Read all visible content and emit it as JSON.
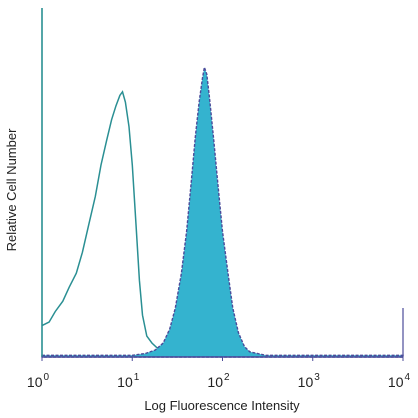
{
  "chart_data": {
    "type": "area",
    "title": "",
    "xlabel": "Log Fluorescence Intensity",
    "ylabel": "Relative Cell Number",
    "x_scale": "log10",
    "xlim": [
      1,
      10000
    ],
    "ylim": [
      0,
      100
    ],
    "x_ticks": [
      {
        "base": "10",
        "exp": "0"
      },
      {
        "base": "10",
        "exp": "1"
      },
      {
        "base": "10",
        "exp": "2"
      },
      {
        "base": "10",
        "exp": "3"
      },
      {
        "base": "10",
        "exp": "4"
      }
    ],
    "grid": false,
    "series": [
      {
        "style": "outline",
        "color": "#2a8f93",
        "points": [
          [
            1.0,
            9
          ],
          [
            1.2,
            10
          ],
          [
            1.4,
            13
          ],
          [
            1.7,
            16
          ],
          [
            2.0,
            20
          ],
          [
            2.4,
            24
          ],
          [
            2.8,
            30
          ],
          [
            3.3,
            38
          ],
          [
            3.9,
            46
          ],
          [
            4.5,
            55
          ],
          [
            5.2,
            62
          ],
          [
            5.9,
            68
          ],
          [
            6.6,
            72
          ],
          [
            7.3,
            75
          ],
          [
            7.8,
            76
          ],
          [
            8.4,
            73
          ],
          [
            9.2,
            66
          ],
          [
            10.0,
            55
          ],
          [
            11.0,
            38
          ],
          [
            12.0,
            22
          ],
          [
            13.0,
            12
          ],
          [
            14.5,
            6
          ],
          [
            16.5,
            4
          ],
          [
            20,
            2
          ],
          [
            30,
            1
          ]
        ]
      },
      {
        "style": "filled",
        "color": "#34b3cf",
        "edge_color": "#4b4b9a",
        "points": [
          [
            1.0,
            0.5
          ],
          [
            10,
            0.5
          ],
          [
            14,
            1
          ],
          [
            18,
            2
          ],
          [
            22,
            4
          ],
          [
            26,
            8
          ],
          [
            30,
            14
          ],
          [
            35,
            24
          ],
          [
            40,
            36
          ],
          [
            45,
            50
          ],
          [
            50,
            63
          ],
          [
            55,
            73
          ],
          [
            60,
            80
          ],
          [
            63,
            83
          ],
          [
            67,
            81
          ],
          [
            72,
            74
          ],
          [
            80,
            62
          ],
          [
            90,
            48
          ],
          [
            100,
            36
          ],
          [
            115,
            24
          ],
          [
            130,
            14
          ],
          [
            150,
            7
          ],
          [
            175,
            3
          ],
          [
            200,
            1.5
          ],
          [
            300,
            0.5
          ],
          [
            10000,
            0.5
          ]
        ]
      }
    ]
  }
}
